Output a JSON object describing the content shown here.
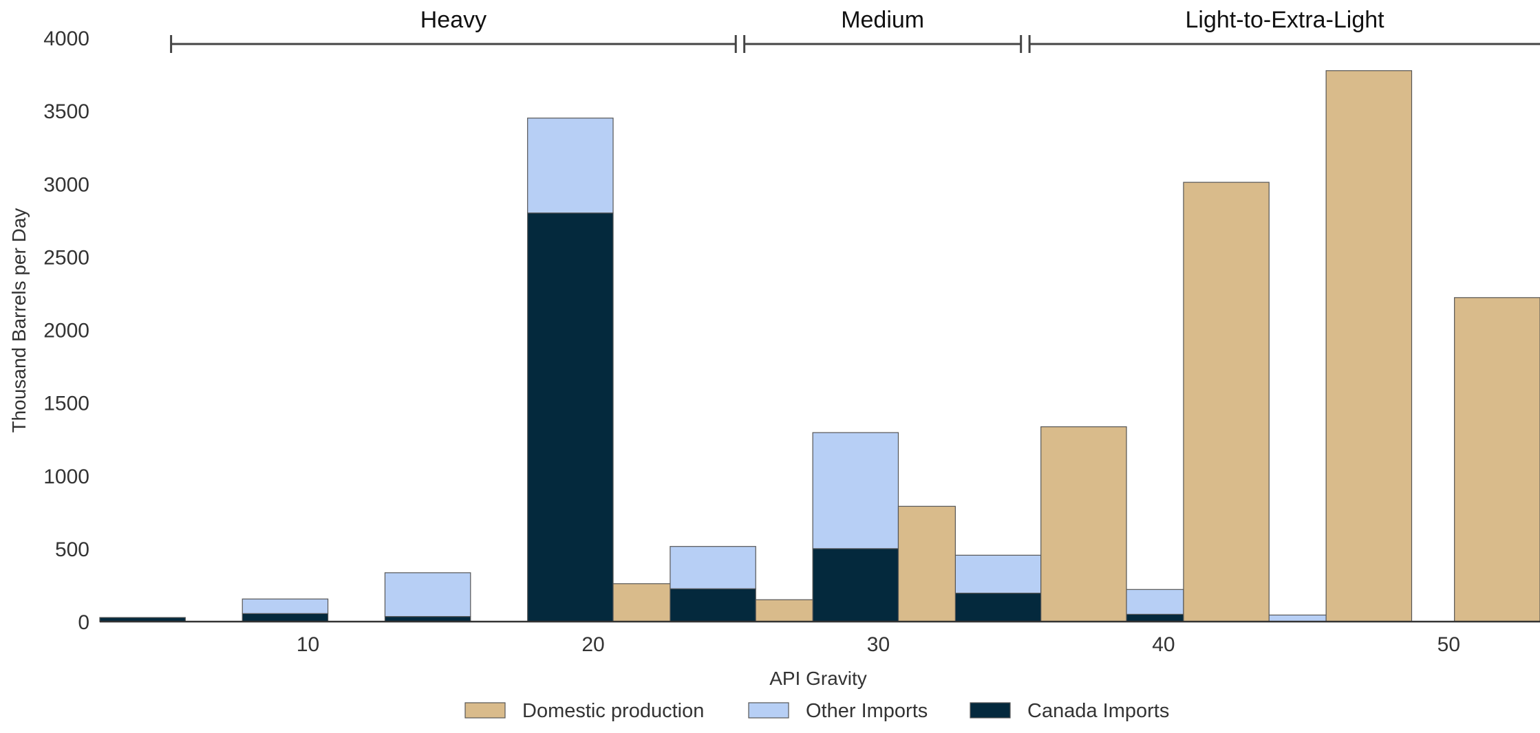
{
  "chart_data": {
    "type": "bar",
    "stacked": true,
    "xlabel": "API Gravity",
    "ylabel": "Thousand Barrels per Day",
    "xlim": [
      2.7,
      53.2
    ],
    "ylim": [
      0,
      4000
    ],
    "x_ticks": [
      10,
      20,
      30,
      40,
      50
    ],
    "y_ticks": [
      0,
      500,
      1000,
      1500,
      2000,
      2500,
      3000,
      3500,
      4000
    ],
    "grid": false,
    "legend_position": "bottom-center",
    "colors": {
      "Domestic production": "#d9bb8b",
      "Other Imports": "#b7cff5",
      "Canada Imports": "#04293d",
      "bar_edge": "#555555",
      "axis": "#333333",
      "band_line": "#444444"
    },
    "gravity_bands": [
      {
        "label": "Heavy",
        "from": 5.2,
        "to": 25
      },
      {
        "label": "Medium",
        "from": 25.3,
        "to": 35
      },
      {
        "label": "Light-to-Extra-Light",
        "from": 35.3,
        "to": 53.2
      }
    ],
    "imports": {
      "series": [
        {
          "name": "Canada Imports",
          "color": "#04293d"
        },
        {
          "name": "Other Imports",
          "color": "#b7cff5"
        }
      ],
      "bins": [
        {
          "from": 2.7,
          "to": 5.7,
          "canada": 28,
          "other": 0
        },
        {
          "from": 7.7,
          "to": 10.7,
          "canada": 55,
          "other": 100
        },
        {
          "from": 12.7,
          "to": 15.7,
          "canada": 35,
          "other": 300
        },
        {
          "from": 17.7,
          "to": 20.7,
          "canada": 2800,
          "other": 650
        },
        {
          "from": 22.7,
          "to": 25.7,
          "canada": 225,
          "other": 290
        },
        {
          "from": 27.7,
          "to": 30.7,
          "canada": 500,
          "other": 795
        },
        {
          "from": 32.7,
          "to": 35.7,
          "canada": 195,
          "other": 260
        },
        {
          "from": 37.7,
          "to": 40.7,
          "canada": 50,
          "other": 170
        },
        {
          "from": 42.7,
          "to": 45.7,
          "canada": 0,
          "other": 45
        }
      ]
    },
    "domestic": {
      "name": "Domestic production",
      "color": "#d9bb8b",
      "bins": [
        {
          "from": 20.7,
          "to": 22.7,
          "value": 260
        },
        {
          "from": 25.7,
          "to": 27.7,
          "value": 150
        },
        {
          "from": 30.7,
          "to": 32.7,
          "value": 790
        },
        {
          "from": 35.7,
          "to": 38.7,
          "value": 1335
        },
        {
          "from": 40.7,
          "to": 43.7,
          "value": 3010
        },
        {
          "from": 45.7,
          "to": 48.7,
          "value": 3775
        },
        {
          "from": 50.2,
          "to": 53.2,
          "value": 2220
        }
      ]
    },
    "legend": [
      "Domestic production",
      "Other Imports",
      "Canada Imports"
    ]
  }
}
